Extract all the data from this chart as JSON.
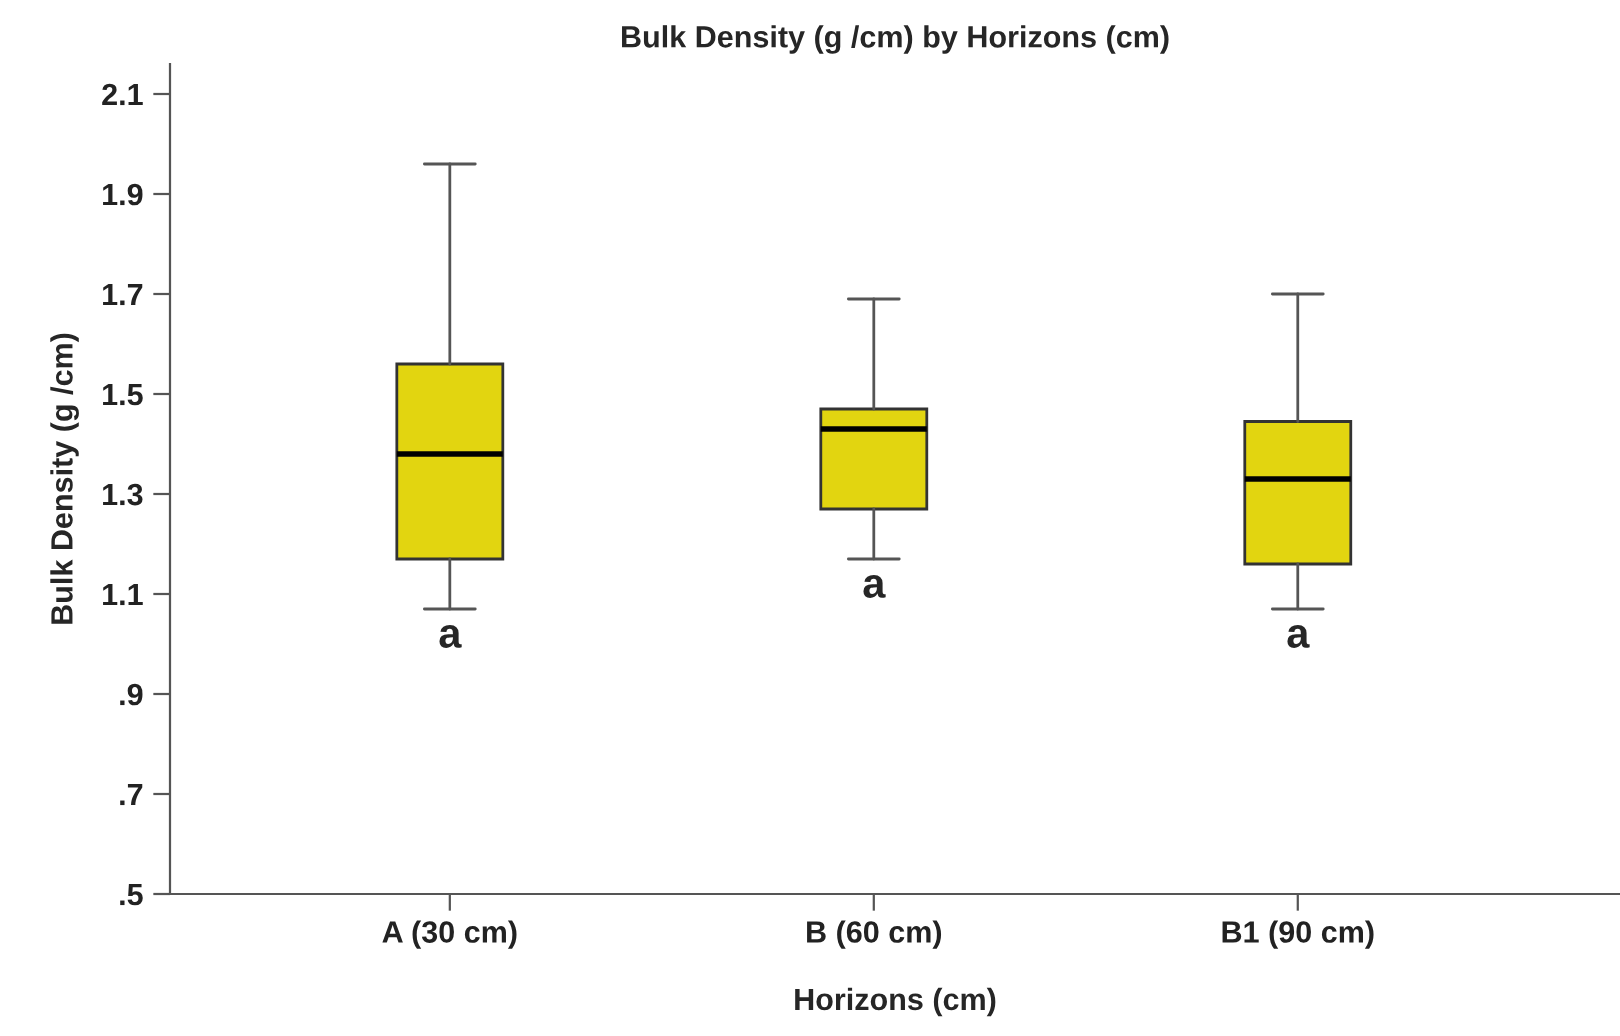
{
  "chart_data": {
    "type": "box",
    "title": "Bulk Density (g /cm) by Horizons (cm)",
    "xlabel": "Horizons (cm)",
    "ylabel": "Bulk Density (g /cm)",
    "categories": [
      "A (30 cm)",
      "B (60 cm)",
      "B1 (90 cm)"
    ],
    "color": "#e2d510",
    "boxes": [
      {
        "low": 1.07,
        "q1": 1.17,
        "median": 1.38,
        "q3": 1.56,
        "high": 1.96
      },
      {
        "low": 1.17,
        "q1": 1.27,
        "median": 1.43,
        "q3": 1.47,
        "high": 1.69
      },
      {
        "low": 1.07,
        "q1": 1.16,
        "median": 1.33,
        "q3": 1.445,
        "high": 1.7
      }
    ],
    "annotations": [
      "a",
      "a",
      "a"
    ],
    "ylim": [
      0.5,
      2.16
    ],
    "yticks": [
      {
        "value": 0.5,
        "label": ".5"
      },
      {
        "value": 0.7,
        "label": ".7"
      },
      {
        "value": 0.9,
        "label": ".9"
      },
      1.1,
      1.3,
      1.5,
      1.7,
      1.9,
      2.1
    ],
    "grid": false
  }
}
